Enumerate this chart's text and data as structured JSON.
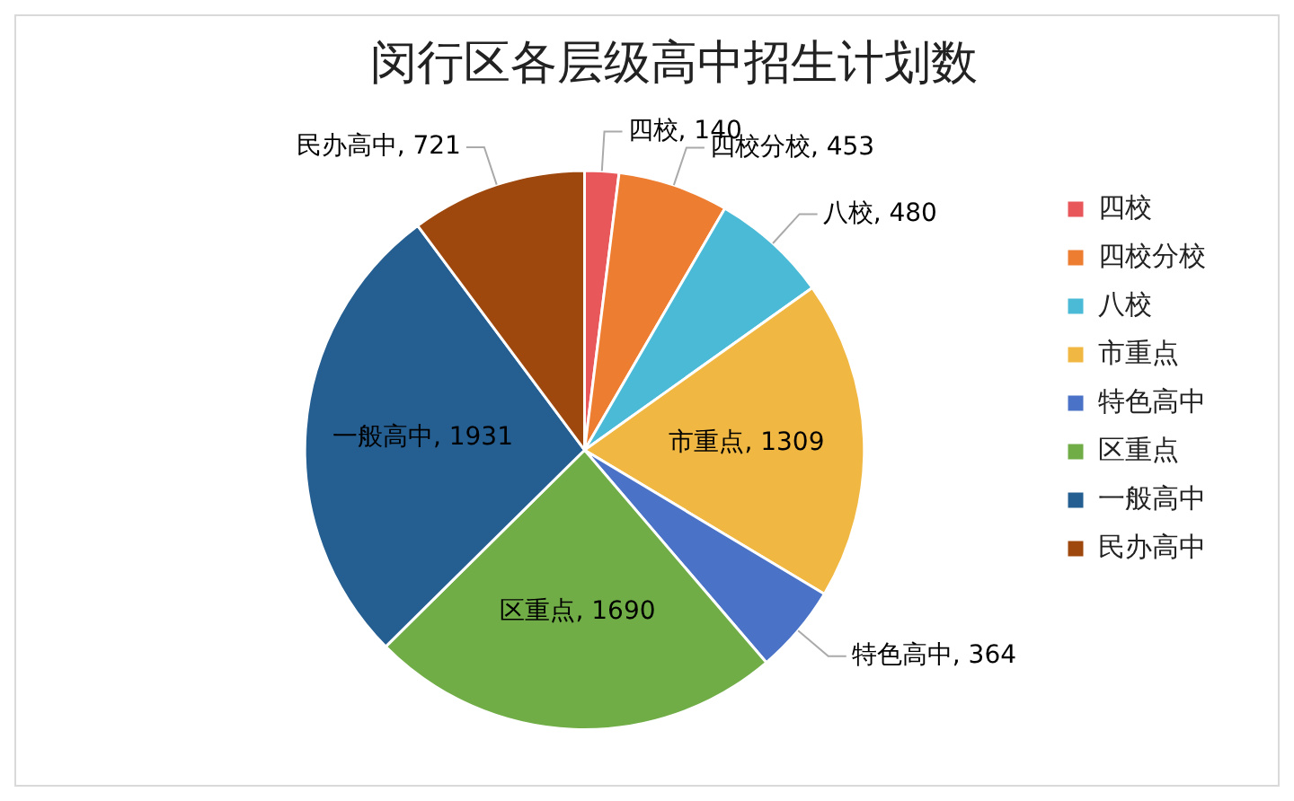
{
  "chart_data": {
    "type": "pie",
    "title": "闵行区各层级高中招生计划数",
    "categories": [
      "四校",
      "四校分校",
      "八校",
      "市重点",
      "特色高中",
      "区重点",
      "一般高中",
      "民办高中"
    ],
    "values": [
      140,
      453,
      480,
      1309,
      364,
      1690,
      1931,
      721
    ],
    "value_labels": [
      "四校, 140",
      "四校分校, 453",
      "八校, 480",
      "市重点, 1309",
      "特色高中, 364",
      "区重点, 1690",
      "一般高中, 1931",
      "民办高中, 721"
    ],
    "colors": [
      "#e8575a",
      "#ed7d31",
      "#4bbad6",
      "#f0b843",
      "#4a72c6",
      "#70ad47",
      "#255e91",
      "#9e480e"
    ],
    "legend": "right"
  }
}
